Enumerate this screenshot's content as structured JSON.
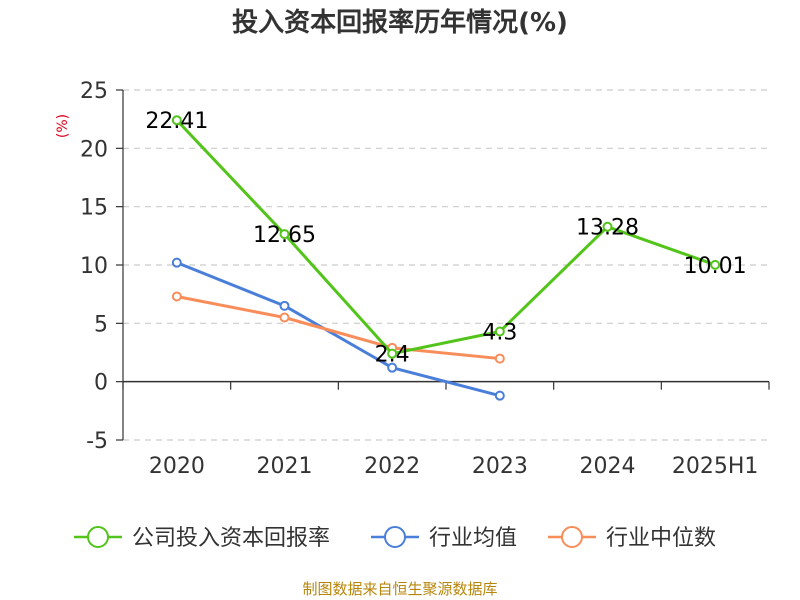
{
  "chart_data": {
    "type": "line",
    "title": "投入资本回报率历年情况(%)",
    "ylabel": "(%)",
    "xlabel": "",
    "categories": [
      "2020",
      "2021",
      "2022",
      "2023",
      "2024",
      "2025H1"
    ],
    "ylim": [
      -5,
      25
    ],
    "yticks": [
      -5,
      0,
      5,
      10,
      15,
      20,
      25
    ],
    "grid": true,
    "legend_position": "bottom",
    "series": [
      {
        "name": "公司投入资本回报率",
        "color": "#52c41a",
        "values": [
          22.41,
          12.65,
          2.4,
          4.3,
          13.28,
          10.01
        ],
        "labels": [
          "22.41",
          "12.65",
          "2.4",
          "4.3",
          "13.28",
          "10.01"
        ]
      },
      {
        "name": "行业均值",
        "color": "#4a7fd9",
        "values": [
          10.2,
          6.5,
          1.2,
          -1.2,
          null,
          null
        ]
      },
      {
        "name": "行业中位数",
        "color": "#f98d5a",
        "values": [
          7.3,
          5.5,
          2.9,
          1.98,
          null,
          null
        ]
      }
    ],
    "source": "制图数据来自恒生聚源数据库"
  }
}
